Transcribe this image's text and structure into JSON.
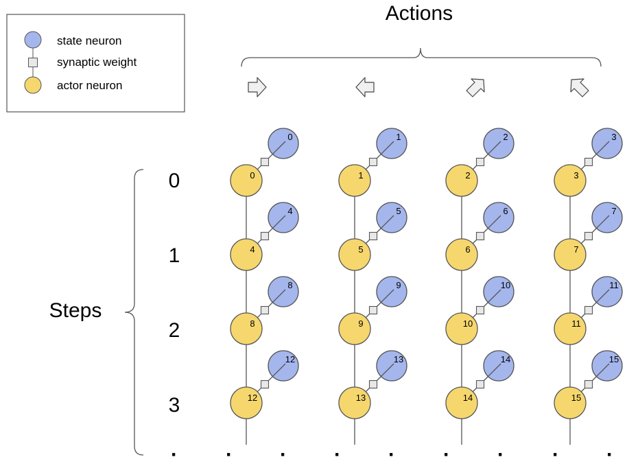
{
  "legend": {
    "items": [
      {
        "label": "state neuron",
        "icon": "state-neuron-icon",
        "color": "#a4b6ec"
      },
      {
        "label": "synaptic weight",
        "icon": "synaptic-weight-icon",
        "color": "#e8e8e8"
      },
      {
        "label": "actor neuron",
        "icon": "actor-neuron-icon",
        "color": "#f6d76e"
      }
    ]
  },
  "actions": {
    "title": "Actions",
    "icons": [
      "arrow-right-icon",
      "arrow-left-icon",
      "arrow-up-right-icon",
      "arrow-up-left-icon"
    ]
  },
  "steps": {
    "title": "Steps",
    "labels": [
      "0",
      "1",
      "2",
      "3"
    ]
  },
  "grid": {
    "actor_labels": [
      [
        "0",
        "1",
        "2",
        "3"
      ],
      [
        "4",
        "5",
        "6",
        "7"
      ],
      [
        "8",
        "9",
        "10",
        "11"
      ],
      [
        "12",
        "13",
        "14",
        "15"
      ]
    ],
    "state_labels": [
      [
        "0",
        "1",
        "2",
        "3"
      ],
      [
        "4",
        "5",
        "6",
        "7"
      ],
      [
        "8",
        "9",
        "10",
        "11"
      ],
      [
        "12",
        "13",
        "14",
        "15"
      ]
    ]
  },
  "continuation_dots": [
    "·",
    "·",
    "·",
    "·",
    "·",
    "·",
    "·",
    "·",
    "·"
  ],
  "colors": {
    "state_neuron": "#a4b6ec",
    "actor_neuron": "#f6d76e",
    "synapse": "#e8e8e8",
    "stroke": "#555555"
  }
}
